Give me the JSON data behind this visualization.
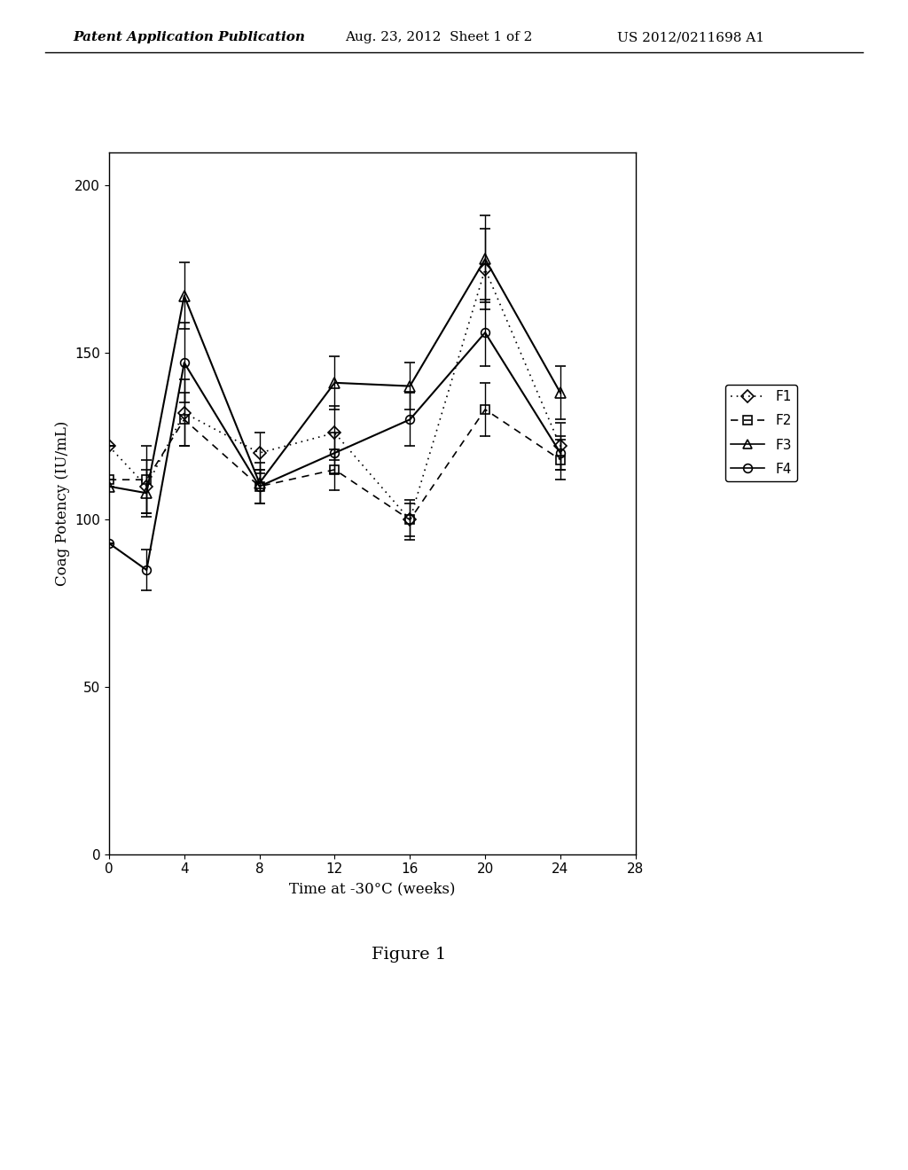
{
  "title": "",
  "xlabel": "Time at -30°C (weeks)",
  "ylabel": "Coag Potency (IU/mL)",
  "figure_caption": "Figure 1",
  "xlim": [
    0,
    28
  ],
  "ylim": [
    0,
    210
  ],
  "xticks": [
    0,
    4,
    8,
    12,
    16,
    20,
    24,
    28
  ],
  "yticks": [
    0,
    50,
    100,
    150,
    200
  ],
  "background_color": "#ffffff",
  "series": {
    "F1": {
      "x": [
        0,
        2,
        4,
        8,
        12,
        16,
        20,
        24
      ],
      "y": [
        122,
        110,
        132,
        120,
        126,
        100,
        175,
        122
      ],
      "yerr": [
        0,
        8,
        10,
        6,
        8,
        5,
        12,
        7
      ],
      "linestyle": "dotted",
      "marker": "D",
      "color": "#000000"
    },
    "F2": {
      "x": [
        0,
        2,
        4,
        8,
        12,
        16,
        20,
        24
      ],
      "y": [
        112,
        112,
        130,
        110,
        115,
        100,
        133,
        118
      ],
      "yerr": [
        0,
        10,
        8,
        5,
        6,
        6,
        8,
        6
      ],
      "linestyle": "dashed",
      "marker": "s",
      "color": "#000000"
    },
    "F3": {
      "x": [
        0,
        2,
        4,
        8,
        12,
        16,
        20,
        24
      ],
      "y": [
        110,
        108,
        167,
        111,
        141,
        140,
        178,
        138
      ],
      "yerr": [
        0,
        7,
        10,
        6,
        8,
        7,
        13,
        8
      ],
      "linestyle": "solid",
      "marker": "^",
      "color": "#000000"
    },
    "F4": {
      "x": [
        0,
        2,
        4,
        8,
        12,
        16,
        20,
        24
      ],
      "y": [
        93,
        85,
        147,
        110,
        120,
        130,
        156,
        120
      ],
      "yerr": [
        0,
        6,
        12,
        5,
        6,
        8,
        10,
        5
      ],
      "linestyle": "solid",
      "marker": "o",
      "color": "#000000"
    }
  },
  "legend_labels": [
    "F1",
    "F2",
    "F3",
    "F4"
  ],
  "legend_linestyles": [
    "dotted",
    "dashed",
    "solid",
    "solid"
  ],
  "legend_markers": [
    "D",
    "s",
    "^",
    "o"
  ],
  "header_left": "Patent Application Publication",
  "header_center": "Aug. 23, 2012  Sheet 1 of 2",
  "header_right": "US 2012/0211698 A1"
}
